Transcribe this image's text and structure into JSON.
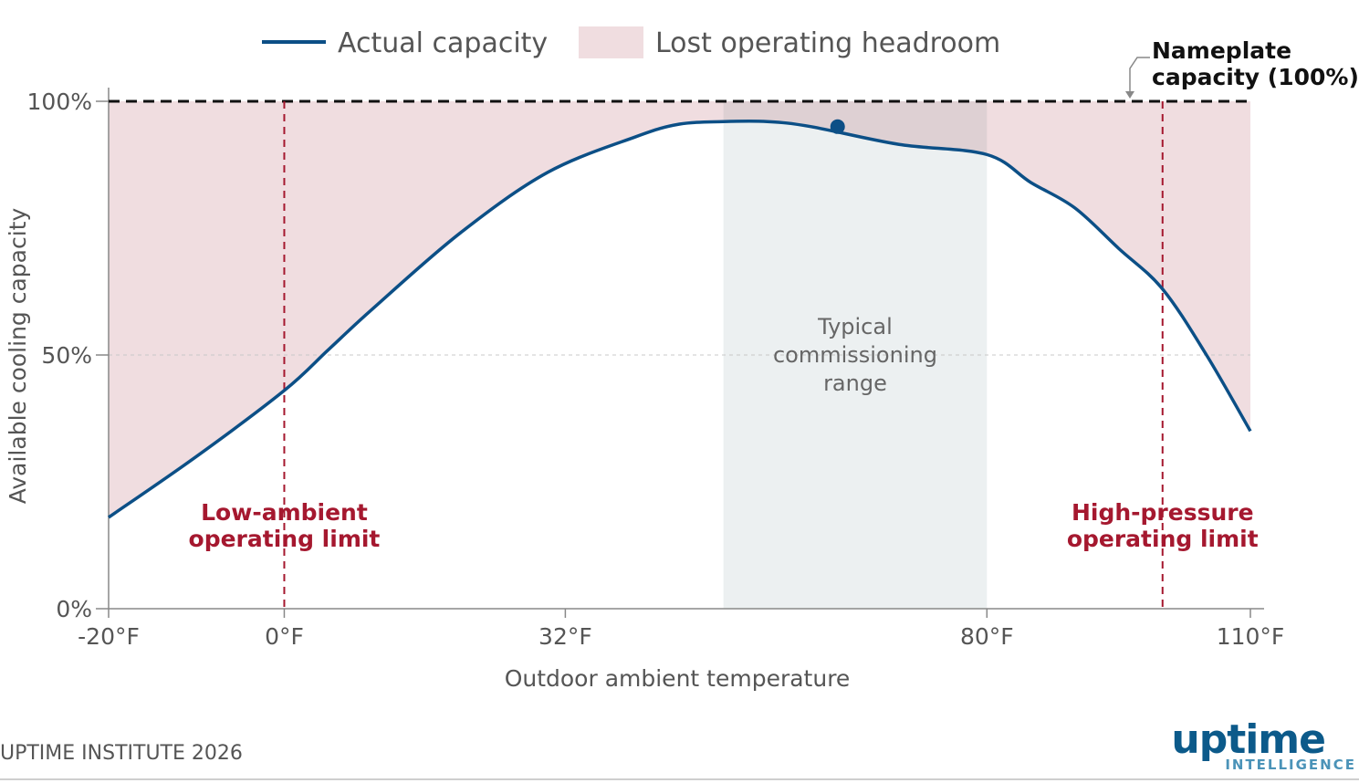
{
  "chart_data": {
    "type": "line",
    "xlabel": "Outdoor ambient temperature",
    "ylabel": "Available cooling capacity",
    "x_ticks": [
      {
        "value": -20,
        "label": "-20°F"
      },
      {
        "value": 0,
        "label": "0°F"
      },
      {
        "value": 32,
        "label": "32°F"
      },
      {
        "value": 80,
        "label": "80°F"
      },
      {
        "value": 110,
        "label": "110°F"
      }
    ],
    "y_ticks": [
      {
        "value": 0,
        "label": "0%"
      },
      {
        "value": 50,
        "label": "50%"
      },
      {
        "value": 100,
        "label": "100%"
      }
    ],
    "xlim": [
      -20,
      110
    ],
    "ylim": [
      0,
      100
    ],
    "grid": "dashed horizontal line at 50%",
    "legend": {
      "placement": "top-center",
      "items": [
        {
          "label": "Actual capacity",
          "symbol": "line",
          "color": "#0c4f86"
        },
        {
          "label": "Lost operating headroom",
          "symbol": "patch",
          "color": "#f0dde0"
        }
      ]
    },
    "series": [
      {
        "name": "Actual capacity",
        "color": "#0c4f86",
        "points": [
          [
            -20,
            18
          ],
          [
            -10,
            30
          ],
          [
            0,
            43
          ],
          [
            5,
            51
          ],
          [
            10,
            59
          ],
          [
            20,
            74
          ],
          [
            30,
            86
          ],
          [
            40,
            93
          ],
          [
            45,
            95.5
          ],
          [
            50,
            96
          ],
          [
            55,
            96
          ],
          [
            60,
            95
          ],
          [
            70,
            91.5
          ],
          [
            80,
            89.5
          ],
          [
            85,
            84
          ],
          [
            90,
            79
          ],
          [
            95,
            71
          ],
          [
            100,
            63
          ],
          [
            105,
            50
          ],
          [
            110,
            35
          ]
        ]
      }
    ],
    "highlight_point": {
      "x": 63,
      "y": 95
    },
    "nameplate": {
      "value": 100,
      "label_lines": [
        "Nameplate",
        "capacity (100%)"
      ]
    },
    "commissioning_range": {
      "x_start": 50,
      "x_end": 80,
      "label_lines": [
        "Typical",
        "commissioning",
        "range"
      ],
      "color": "#e9edef"
    },
    "limits": [
      {
        "x": 0,
        "label_lines": [
          "Low-ambient",
          "operating limit"
        ],
        "color": "#a5182f"
      },
      {
        "x": 100,
        "label_lines": [
          "High-pressure",
          "operating limit"
        ],
        "color": "#a5182f"
      }
    ]
  },
  "footer": {
    "source": "UPTIME INSTITUTE 2026",
    "brand_word": "uptime",
    "brand_sub": "INTELLIGENCE",
    "brand_color": "#0c5a8a",
    "brand_sub_color": "#4b93b8"
  }
}
